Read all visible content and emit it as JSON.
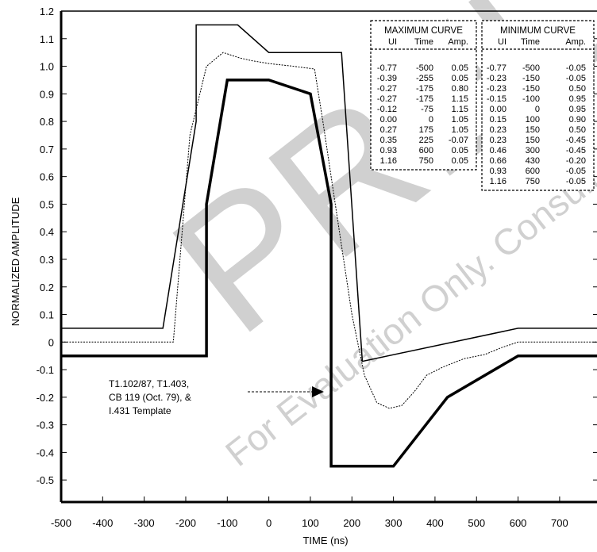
{
  "chart_data": {
    "type": "line",
    "xlabel": "TIME (ns)",
    "ylabel": "NORMALIZED AMPLITUDE",
    "xlim": [
      -500,
      790
    ],
    "ylim": [
      -0.58,
      1.2
    ],
    "xticks": [
      -500,
      -400,
      -300,
      -200,
      -100,
      0,
      100,
      200,
      300,
      400,
      500,
      600,
      700
    ],
    "yticks": [
      1.2,
      1.1,
      1.0,
      0.9,
      0.8,
      0.7,
      0.6,
      0.5,
      0.4,
      0.3,
      0.2,
      0.1,
      0,
      -0.1,
      -0.2,
      -0.3,
      -0.4,
      -0.5
    ],
    "xtick_labels": [
      "-500",
      "-400",
      "-300",
      "-200",
      "-100",
      "0",
      "100",
      "200",
      "300",
      "400",
      "500",
      "600",
      "700"
    ],
    "ytick_labels": [
      "1.2",
      "1.1",
      "1.0",
      "0.9",
      "0.8",
      "0.7",
      "0.6",
      "0.5",
      "0.4",
      "0.3",
      "0.2",
      "0.1",
      "0",
      "-0.1",
      "-0.2",
      "-0.3",
      "-0.4",
      "-0.5"
    ],
    "series": [
      {
        "name": "MAXIMUM CURVE",
        "points": [
          [
            -500,
            0.05
          ],
          [
            -255,
            0.05
          ],
          [
            -175,
            0.8
          ],
          [
            -175,
            1.15
          ],
          [
            -75,
            1.15
          ],
          [
            0,
            1.05
          ],
          [
            175,
            1.05
          ],
          [
            225,
            -0.07
          ],
          [
            600,
            0.05
          ],
          [
            790,
            0.05
          ]
        ]
      },
      {
        "name": "MINIMUM CURVE",
        "points": [
          [
            -500,
            -0.05
          ],
          [
            -150,
            -0.05
          ],
          [
            -150,
            0.5
          ],
          [
            -100,
            0.95
          ],
          [
            0,
            0.95
          ],
          [
            100,
            0.9
          ],
          [
            150,
            0.5
          ],
          [
            150,
            -0.45
          ],
          [
            300,
            -0.45
          ],
          [
            430,
            -0.2
          ],
          [
            600,
            -0.05
          ],
          [
            790,
            -0.05
          ]
        ]
      },
      {
        "points": [
          [
            -500,
            0
          ],
          [
            -230,
            0
          ],
          [
            -190,
            0.75
          ],
          [
            -150,
            1.0
          ],
          [
            -110,
            1.05
          ],
          [
            -70,
            1.03
          ],
          [
            -40,
            1.02
          ],
          [
            0,
            1.01
          ],
          [
            60,
            1.0
          ],
          [
            110,
            0.99
          ],
          [
            130,
            0.8
          ],
          [
            160,
            0.5
          ],
          [
            200,
            0.1
          ],
          [
            230,
            -0.12
          ],
          [
            260,
            -0.22
          ],
          [
            290,
            -0.24
          ],
          [
            320,
            -0.23
          ],
          [
            350,
            -0.18
          ],
          [
            380,
            -0.12
          ],
          [
            420,
            -0.09
          ],
          [
            470,
            -0.06
          ],
          [
            520,
            -0.045
          ],
          [
            560,
            -0.02
          ],
          [
            600,
            0
          ],
          [
            790,
            0
          ]
        ]
      }
    ],
    "max_table": {
      "title": "MAXIMUM CURVE",
      "headers": [
        "UI",
        "Time",
        "Amp."
      ],
      "rows": [
        [
          "-0.77",
          "-500",
          "0.05"
        ],
        [
          "-0.39",
          "-255",
          "0.05"
        ],
        [
          "-0.27",
          "-175",
          "0.80"
        ],
        [
          "-0.27",
          "-175",
          "1.15"
        ],
        [
          "-0.12",
          "-75",
          "1.15"
        ],
        [
          "0.00",
          "0",
          "1.05"
        ],
        [
          "0.27",
          "175",
          "1.05"
        ],
        [
          "0.35",
          "225",
          "-0.07"
        ],
        [
          "0.93",
          "600",
          "0.05"
        ],
        [
          "1.16",
          "750",
          "0.05"
        ]
      ]
    },
    "min_table": {
      "title": "MINIMUM CURVE",
      "headers": [
        "UI",
        "Time",
        "Amp."
      ],
      "rows": [
        [
          "-0.77",
          "-500",
          "-0.05"
        ],
        [
          "-0.23",
          "-150",
          "-0.05"
        ],
        [
          "-0.23",
          "-150",
          "0.50"
        ],
        [
          "-0.15",
          "-100",
          "0.95"
        ],
        [
          "0.00",
          "0",
          "0.95"
        ],
        [
          "0.15",
          "100",
          "0.90"
        ],
        [
          "0.23",
          "150",
          "0.50"
        ],
        [
          "0.23",
          "150",
          "-0.45"
        ],
        [
          "0.46",
          "300",
          "-0.45"
        ],
        [
          "0.66",
          "430",
          "-0.20"
        ],
        [
          "0.93",
          "600",
          "-0.05"
        ],
        [
          "1.16",
          "750",
          "-0.05"
        ]
      ]
    },
    "annotation": {
      "lines": [
        "T1.102/87, T1.403,",
        "CB 119 (Oct. 79), &",
        "I.431 Template"
      ]
    },
    "watermark": {
      "main": "PRELIM",
      "sub": "For Evaluation Only. Consult"
    }
  }
}
